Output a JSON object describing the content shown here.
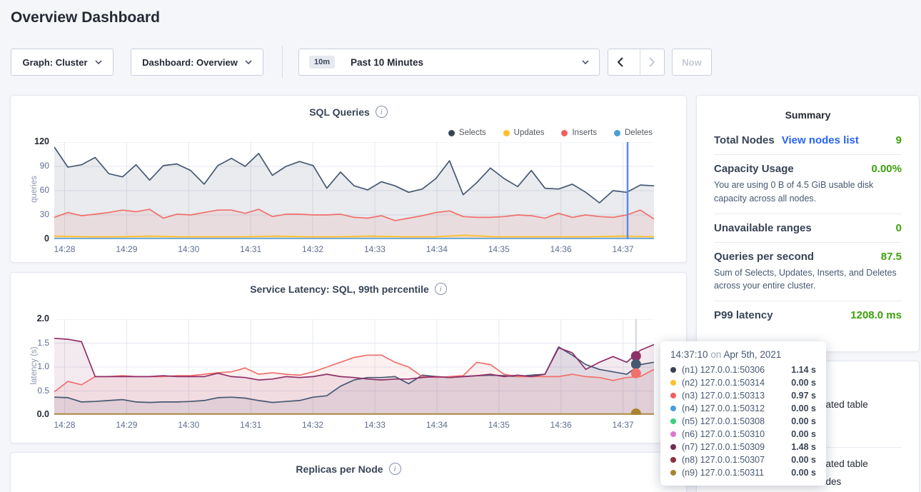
{
  "page": {
    "title": "Overview Dashboard"
  },
  "controls": {
    "graph_label": "Graph: Cluster",
    "dashboard_label": "Dashboard: Overview",
    "range_badge": "10m",
    "range_label": "Past 10 Minutes",
    "now_label": "Now"
  },
  "chart_data": [
    {
      "name": "sql-queries",
      "type": "line",
      "title": "SQL Queries",
      "ylabel": "queries",
      "xlabel": "",
      "ylim": [
        0,
        120
      ],
      "grid": true,
      "legend_position": "top-right",
      "yticks": [
        {
          "label": "0",
          "value": 0
        },
        {
          "label": "30",
          "value": 30
        },
        {
          "label": "60",
          "value": 60
        },
        {
          "label": "90",
          "value": 90
        },
        {
          "label": "120",
          "value": 120
        }
      ],
      "xticks": [
        "14:28",
        "14:29",
        "14:30",
        "14:31",
        "14:32",
        "14:33",
        "14:34",
        "14:35",
        "14:36",
        "14:37"
      ],
      "series": [
        {
          "name": "Selects",
          "color": "#475872",
          "fill": "rgba(71,88,114,0.12)",
          "values": [
            114,
            89,
            92,
            101,
            81,
            77,
            92,
            73,
            91,
            93,
            85,
            68,
            91,
            100,
            90,
            106,
            79,
            90,
            96,
            91,
            63,
            83,
            66,
            61,
            71,
            66,
            58,
            62,
            75,
            97,
            55,
            70,
            88,
            75,
            65,
            85,
            63,
            62,
            68,
            58,
            45,
            60,
            58,
            67,
            66
          ]
        },
        {
          "name": "Inserts",
          "color": "#f0706b",
          "fill": "rgba(240,112,107,0.12)",
          "values": [
            27,
            33,
            29,
            31,
            33,
            36,
            34,
            37,
            26,
            31,
            30,
            33,
            36,
            36,
            32,
            37,
            28,
            31,
            31,
            30,
            30,
            31,
            27,
            26,
            29,
            23,
            26,
            29,
            33,
            35,
            28,
            27,
            27,
            28,
            30,
            29,
            26,
            32,
            27,
            30,
            28,
            27,
            30,
            36,
            25
          ]
        },
        {
          "name": "Updates",
          "color": "#ffbf2b",
          "fill": "rgba(255,191,43,0.20)",
          "values": [
            4,
            3,
            3,
            4,
            3,
            3,
            3,
            4,
            3,
            3,
            4,
            3,
            3,
            5,
            3,
            3,
            3,
            3,
            4,
            3
          ]
        },
        {
          "name": "Deletes",
          "color": "#62aadf",
          "fill": null,
          "values": [
            1,
            1
          ]
        }
      ],
      "legend": [
        {
          "label": "Selects",
          "color": "#394455"
        },
        {
          "label": "Updates",
          "color": "#ffc02e"
        },
        {
          "label": "Inserts",
          "color": "#f16060"
        },
        {
          "label": "Deletes",
          "color": "#4a9fd8"
        }
      ],
      "hover_line": {
        "frac": 0.956,
        "color": "#5b8af0",
        "width": 2.5
      },
      "markers": []
    },
    {
      "name": "service-latency",
      "type": "line",
      "title": "Service Latency: SQL, 99th percentile",
      "ylabel": "latency (s)",
      "xlabel": "",
      "ylim": [
        0,
        2.0
      ],
      "grid": true,
      "legend_position": "none",
      "yticks": [
        {
          "label": "0.0",
          "value": 0
        },
        {
          "label": "0.5",
          "value": 0.5
        },
        {
          "label": "1.0",
          "value": 1.0
        },
        {
          "label": "1.5",
          "value": 1.5
        },
        {
          "label": "2.0",
          "value": 2.0
        }
      ],
      "xticks": [
        "14:28",
        "14:29",
        "14:30",
        "14:31",
        "14:32",
        "14:33",
        "14:34",
        "14:35",
        "14:36",
        "14:37"
      ],
      "series": [
        {
          "name": "n1",
          "color": "#475872",
          "fill": "rgba(71,88,114,0.10)",
          "values": [
            0.37,
            0.36,
            0.27,
            0.28,
            0.3,
            0.32,
            0.27,
            0.26,
            0.27,
            0.27,
            0.28,
            0.3,
            0.36,
            0.37,
            0.35,
            0.3,
            0.26,
            0.28,
            0.3,
            0.37,
            0.4,
            0.6,
            0.73,
            0.78,
            0.78,
            0.8,
            0.65,
            0.83,
            0.8,
            0.78,
            0.8,
            0.82,
            0.83,
            0.82,
            0.8,
            0.83,
            0.85,
            1.42,
            1.25,
            1.05,
            0.95,
            0.9,
            0.85,
            1.05,
            1.1
          ]
        },
        {
          "name": "n3",
          "color": "#f0706b",
          "fill": "rgba(240,112,107,0.10)",
          "values": [
            0.48,
            0.7,
            0.63,
            0.8,
            0.8,
            0.82,
            0.8,
            0.8,
            0.8,
            0.82,
            0.82,
            0.85,
            0.88,
            0.9,
            0.98,
            0.85,
            0.88,
            0.85,
            0.83,
            0.9,
            1.0,
            1.1,
            1.2,
            1.25,
            1.25,
            1.1,
            1.0,
            0.8,
            0.78,
            0.8,
            0.82,
            1.1,
            1.05,
            0.85,
            0.8,
            0.8,
            0.8,
            0.8,
            0.85,
            0.8,
            0.78,
            0.72,
            0.78,
            0.8,
            0.95
          ]
        },
        {
          "name": "n7",
          "color": "#8e3069",
          "fill": "rgba(142,48,105,0.10)",
          "values": [
            1.6,
            1.58,
            1.53,
            0.8,
            0.8,
            0.8,
            0.8,
            0.8,
            0.82,
            0.8,
            0.8,
            0.8,
            0.87,
            0.8,
            0.78,
            0.73,
            0.75,
            0.8,
            0.78,
            0.8,
            0.85,
            0.8,
            0.78,
            0.75,
            0.73,
            0.75,
            0.75,
            0.78,
            0.8,
            0.78,
            0.8,
            0.82,
            0.85,
            0.8,
            0.83,
            0.8,
            0.85,
            1.4,
            1.3,
            0.95,
            1.1,
            1.22,
            1.1,
            1.35,
            1.47
          ]
        },
        {
          "name": "n9",
          "color": "#a8842f",
          "fill": null,
          "values": [
            0.02,
            0.02
          ]
        }
      ],
      "legend": [],
      "hover_line": {
        "frac": 0.97,
        "color": "#c3c9d6",
        "width": 1.5
      },
      "markers": [
        {
          "frac": 0.97,
          "value": 1.23,
          "color": "#8e3069"
        },
        {
          "frac": 0.97,
          "value": 1.06,
          "color": "#475872"
        },
        {
          "frac": 0.97,
          "value": 0.87,
          "color": "#f0706b"
        },
        {
          "frac": 0.97,
          "value": 0.03,
          "color": "#a8842f"
        }
      ]
    }
  ],
  "replicas_chart": {
    "title": "Replicas per Node"
  },
  "summary": {
    "title": "Summary",
    "rows": [
      {
        "label": "Total Nodes",
        "link": "View nodes list",
        "value": "9",
        "desc": ""
      },
      {
        "label": "Capacity Usage",
        "link": "",
        "value": "0.00%",
        "desc": "You are using 0 B of 4.5 GiB usable disk capacity across all nodes."
      },
      {
        "label": "Unavailable ranges",
        "link": "",
        "value": "0",
        "desc": ""
      },
      {
        "label": "Queries per second",
        "link": "",
        "value": "87.5",
        "desc": "Sum of Selects, Updates, Inserts, and Deletes across your entire cluster."
      },
      {
        "label": "P99 latency",
        "link": "",
        "value": "1208.0 ms",
        "desc": ""
      }
    ]
  },
  "events": {
    "visible_fragments": [
      "eated table",
      "eated table",
      "odes"
    ]
  },
  "tooltip": {
    "time": "14:37:10",
    "conj": "on",
    "date": "Apr 5th, 2021",
    "rows": [
      {
        "node": "(n1) 127.0.0.1:50306",
        "value": "1.14 s",
        "color": "#394455"
      },
      {
        "node": "(n2) 127.0.0.1:50314",
        "value": "0.00 s",
        "color": "#ffc02e"
      },
      {
        "node": "(n3) 127.0.0.1:50313",
        "value": "0.97 s",
        "color": "#f16060"
      },
      {
        "node": "(n4) 127.0.0.1:50312",
        "value": "0.00 s",
        "color": "#4a9fd8"
      },
      {
        "node": "(n5) 127.0.0.1:50308",
        "value": "0.00 s",
        "color": "#3fd17e"
      },
      {
        "node": "(n6) 127.0.0.1:50310",
        "value": "0.00 s",
        "color": "#de77d0"
      },
      {
        "node": "(n7) 127.0.0.1:50309",
        "value": "1.48 s",
        "color": "#702b55"
      },
      {
        "node": "(n8) 127.0.0.1:50307",
        "value": "0.00 s",
        "color": "#8e2f3f"
      },
      {
        "node": "(n9) 127.0.0.1:50311",
        "value": "0.00 s",
        "color": "#a8842f"
      }
    ]
  }
}
